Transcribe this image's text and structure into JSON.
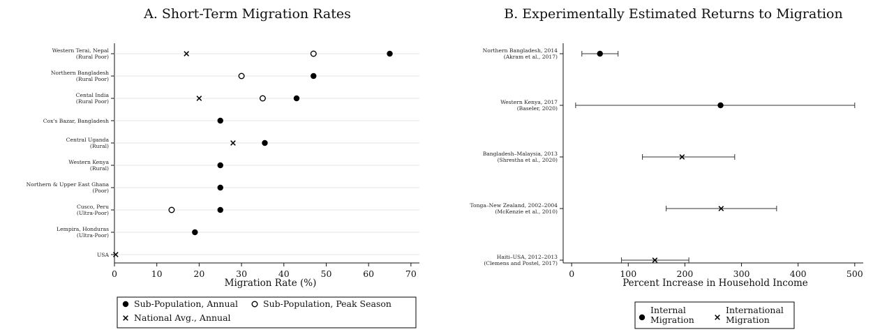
{
  "chart_data": [
    {
      "type": "scatter",
      "title": "A. Short-Term Migration Rates",
      "xlabel": "Migration Rate (%)",
      "ylabel": "",
      "xlim": [
        0,
        72
      ],
      "xticks": [
        0,
        10,
        20,
        30,
        40,
        50,
        60,
        70
      ],
      "grid": true,
      "categories": [
        [
          "Western Terai, Nepal",
          "(Rural Poor)"
        ],
        [
          "Northern Bangladesh",
          "(Rural Poor)"
        ],
        [
          "Cental India",
          "(Rural Poor)"
        ],
        [
          "Cox's Bazar, Bangladesh"
        ],
        [
          "Central Uganda",
          "(Rural)"
        ],
        [
          "Western Kenya",
          "(Rural)"
        ],
        [
          "Northern & Upper East Ghana",
          "(Poor)"
        ],
        [
          "Cusco, Peru",
          "(Ultra-Poor)"
        ],
        [
          "Lempira, Honduras",
          "(Ultra-Poor)"
        ],
        [
          "USA"
        ]
      ],
      "series": [
        {
          "name": "Sub-Population, Annual",
          "marker": "filled-circle",
          "values": [
            65,
            47,
            43,
            25,
            35.5,
            25,
            25,
            25,
            19,
            null
          ]
        },
        {
          "name": "Sub-Population, Peak Season",
          "marker": "hollow-circle",
          "values": [
            47,
            30,
            35,
            null,
            null,
            null,
            null,
            13.5,
            null,
            null
          ]
        },
        {
          "name": "National Avg., Annual",
          "marker": "x",
          "values": [
            17,
            null,
            20,
            null,
            28,
            null,
            null,
            null,
            null,
            0.3
          ]
        }
      ],
      "legend_position": "bottom"
    },
    {
      "type": "scatter",
      "title": "B. Experimentally Estimated Returns to Migration",
      "xlabel": "Percent Increase in Household Income",
      "ylabel": "",
      "xlim": [
        -15,
        515
      ],
      "xticks": [
        0,
        100,
        200,
        300,
        400,
        500
      ],
      "grid": false,
      "categories": [
        [
          "Northern Bangladesh, 2014",
          "(Akram et al., 2017)"
        ],
        [
          "Western Kenya, 2017",
          "(Baseler, 2020)"
        ],
        [
          "Bangladesh–Malaysia, 2013",
          "(Shrestha et al., 2020)"
        ],
        [
          "Tonga–New Zealand, 2002–2004",
          "(McKenzie et al., 2010)"
        ],
        [
          "Haiti–USA, 2012–2013",
          "(Clemens and Postel, 2017)"
        ]
      ],
      "points": [
        {
          "estimate": 50,
          "ci": [
            18,
            82
          ],
          "type": "internal"
        },
        {
          "estimate": 263,
          "ci": [
            7,
            500
          ],
          "type": "internal"
        },
        {
          "estimate": 195,
          "ci": [
            125,
            288
          ],
          "type": "international"
        },
        {
          "estimate": 264,
          "ci": [
            167,
            362
          ],
          "type": "international"
        },
        {
          "estimate": 147,
          "ci": [
            88,
            207
          ],
          "type": "international"
        }
      ],
      "series": [
        {
          "name": "Internal\nMigration",
          "marker": "filled-circle"
        },
        {
          "name": "International\nMigration",
          "marker": "x"
        }
      ],
      "legend_position": "bottom"
    }
  ]
}
